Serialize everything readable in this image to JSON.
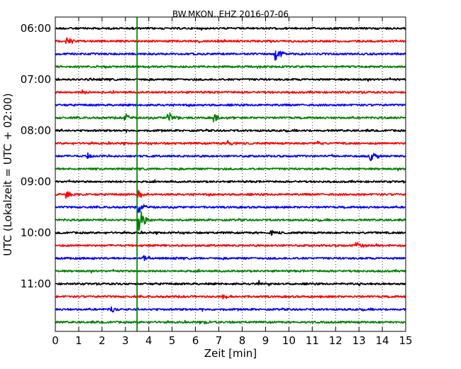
{
  "chart_data": {
    "type": "line",
    "title": "BW.MKON..EHZ 2016-07-06",
    "xlabel": "Zeit  [min]",
    "ylabel": "UTC (Lokalzeit = UTC + 02:00)",
    "xlim": [
      0,
      15
    ],
    "x_ticks": [
      "0",
      "1",
      "2",
      "3",
      "4",
      "5",
      "6",
      "7",
      "8",
      "9",
      "10",
      "11",
      "12",
      "13",
      "14",
      "15"
    ],
    "y_tick_labels": [
      "06:00",
      "07:00",
      "08:00",
      "09:00",
      "10:00",
      "11:00"
    ],
    "grid": "dotted vertical lines at each minute",
    "trace_colors": [
      "#000000",
      "#ff0000",
      "#0000ff",
      "#008000"
    ],
    "traces_per_hour": 4,
    "trace_start_times": [
      "06:00",
      "06:15",
      "06:30",
      "06:45",
      "07:00",
      "07:15",
      "07:30",
      "07:45",
      "08:00",
      "08:15",
      "08:30",
      "08:45",
      "09:00",
      "09:15",
      "09:30",
      "09:45",
      "10:00",
      "10:15",
      "10:30",
      "10:45",
      "11:00",
      "11:15",
      "11:30",
      "11:45"
    ],
    "marker_line": {
      "x": 3.5,
      "color": "#008000"
    },
    "events": [
      {
        "trace": 1,
        "x": 0.5,
        "amp": 6
      },
      {
        "trace": 2,
        "x": 9.45,
        "amp": 11
      },
      {
        "trace": 5,
        "x": 1.2,
        "amp": 3
      },
      {
        "trace": 7,
        "x": 4.85,
        "amp": 8
      },
      {
        "trace": 7,
        "x": 3.0,
        "amp": 5
      },
      {
        "trace": 7,
        "x": 6.8,
        "amp": 5
      },
      {
        "trace": 9,
        "x": 7.4,
        "amp": 4
      },
      {
        "trace": 9,
        "x": 11.2,
        "amp": 4
      },
      {
        "trace": 10,
        "x": 1.4,
        "amp": 4
      },
      {
        "trace": 10,
        "x": 13.5,
        "amp": 8
      },
      {
        "trace": 13,
        "x": 0.5,
        "amp": 5
      },
      {
        "trace": 13,
        "x": 3.55,
        "amp": 6
      },
      {
        "trace": 14,
        "x": 3.55,
        "amp": 8
      },
      {
        "trace": 15,
        "x": 3.6,
        "amp": 18
      },
      {
        "trace": 16,
        "x": 9.2,
        "amp": 4
      },
      {
        "trace": 17,
        "x": 12.9,
        "amp": 6
      },
      {
        "trace": 18,
        "x": 3.8,
        "amp": 4
      },
      {
        "trace": 20,
        "x": 8.7,
        "amp": 4
      },
      {
        "trace": 20,
        "x": 13.0,
        "amp": 3
      },
      {
        "trace": 21,
        "x": 7.2,
        "amp": 3
      },
      {
        "trace": 22,
        "x": 2.4,
        "amp": 4
      },
      {
        "trace": 23,
        "x": 6.4,
        "amp": 3
      }
    ]
  }
}
